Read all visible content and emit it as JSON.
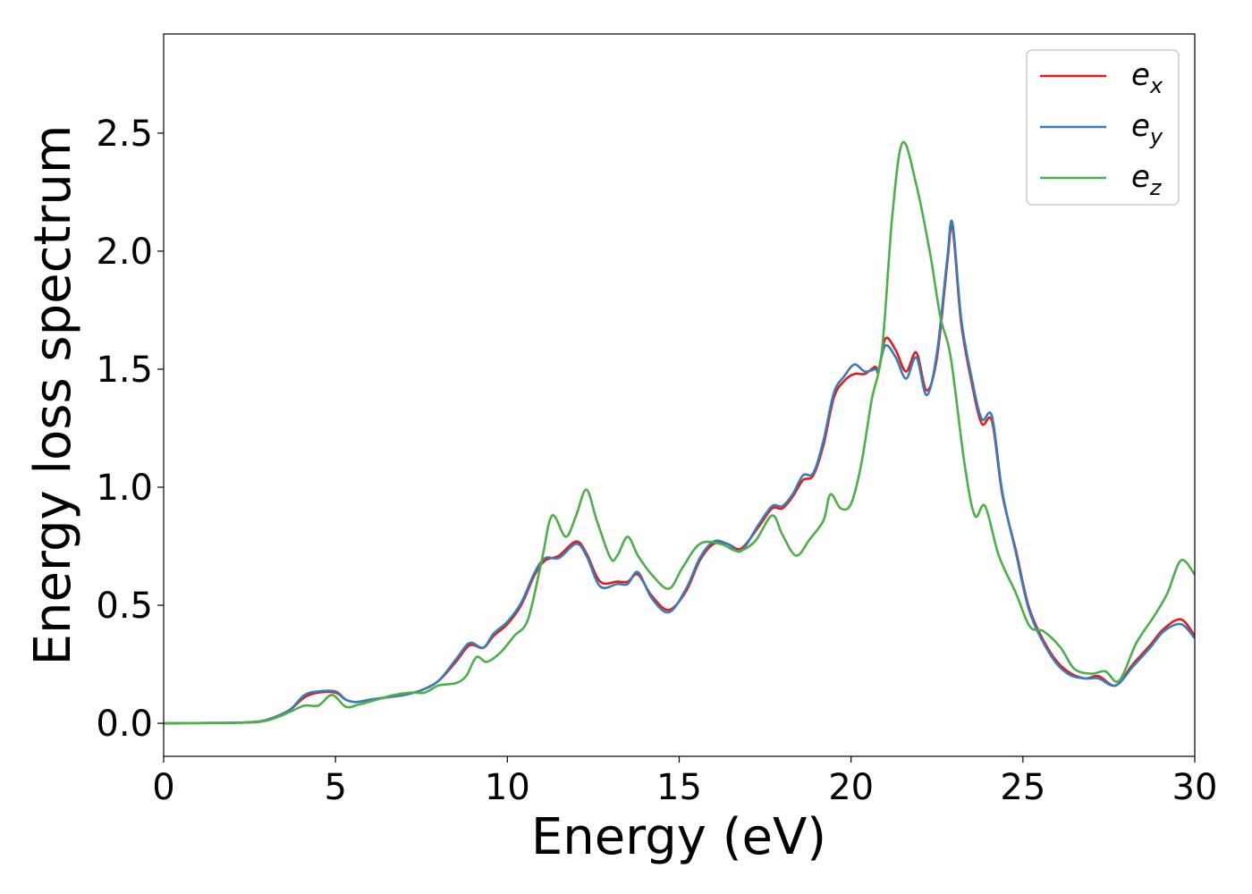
{
  "chart_data": {
    "type": "line",
    "title": "",
    "xlabel": "Energy (eV)",
    "ylabel": "Energy loss spectrum",
    "xlim": [
      0,
      30
    ],
    "ylim": [
      -0.14,
      2.92
    ],
    "xticks": [
      "0",
      "5",
      "10",
      "15",
      "20",
      "25",
      "30"
    ],
    "yticks": [
      "0.0",
      "0.5",
      "1.0",
      "1.5",
      "2.0",
      "2.5"
    ],
    "grid": false,
    "legend_position": "top-right",
    "series": [
      {
        "name": "e_x",
        "legend_main": "e",
        "legend_sub": "x",
        "color": "#e41a1c",
        "points": [
          [
            0,
            0
          ],
          [
            1,
            0.001
          ],
          [
            2,
            0.002
          ],
          [
            2.8,
            0.008
          ],
          [
            3.3,
            0.03
          ],
          [
            3.7,
            0.06
          ],
          [
            4.1,
            0.11
          ],
          [
            4.5,
            0.13
          ],
          [
            5,
            0.13
          ],
          [
            5.3,
            0.1
          ],
          [
            5.6,
            0.09
          ],
          [
            6,
            0.1
          ],
          [
            6.5,
            0.11
          ],
          [
            7,
            0.12
          ],
          [
            7.5,
            0.14
          ],
          [
            8,
            0.18
          ],
          [
            8.5,
            0.26
          ],
          [
            8.9,
            0.33
          ],
          [
            9.3,
            0.32
          ],
          [
            9.6,
            0.37
          ],
          [
            10,
            0.42
          ],
          [
            10.4,
            0.5
          ],
          [
            10.8,
            0.63
          ],
          [
            11.1,
            0.69
          ],
          [
            11.5,
            0.71
          ],
          [
            12,
            0.77
          ],
          [
            12.3,
            0.72
          ],
          [
            12.7,
            0.6
          ],
          [
            13.2,
            0.6
          ],
          [
            13.5,
            0.6
          ],
          [
            13.8,
            0.63
          ],
          [
            14.2,
            0.54
          ],
          [
            14.7,
            0.48
          ],
          [
            15.2,
            0.56
          ],
          [
            15.6,
            0.69
          ],
          [
            16,
            0.76
          ],
          [
            16.4,
            0.76
          ],
          [
            16.8,
            0.74
          ],
          [
            17.3,
            0.83
          ],
          [
            17.7,
            0.91
          ],
          [
            18,
            0.91
          ],
          [
            18.3,
            0.96
          ],
          [
            18.6,
            1.03
          ],
          [
            18.9,
            1.05
          ],
          [
            19.2,
            1.18
          ],
          [
            19.5,
            1.38
          ],
          [
            19.8,
            1.45
          ],
          [
            20.1,
            1.48
          ],
          [
            20.4,
            1.48
          ],
          [
            20.7,
            1.51
          ],
          [
            20.8,
            1.49
          ],
          [
            21,
            1.63
          ],
          [
            21.3,
            1.58
          ],
          [
            21.6,
            1.49
          ],
          [
            21.9,
            1.57
          ],
          [
            22.2,
            1.41
          ],
          [
            22.5,
            1.55
          ],
          [
            22.8,
            1.95
          ],
          [
            22.95,
            2.1
          ],
          [
            23.2,
            1.7
          ],
          [
            23.5,
            1.45
          ],
          [
            23.8,
            1.27
          ],
          [
            24.1,
            1.28
          ],
          [
            24.4,
            0.97
          ],
          [
            24.8,
            0.73
          ],
          [
            25.2,
            0.48
          ],
          [
            25.8,
            0.3
          ],
          [
            26.3,
            0.22
          ],
          [
            26.8,
            0.19
          ],
          [
            27.2,
            0.2
          ],
          [
            27.7,
            0.16
          ],
          [
            28.2,
            0.25
          ],
          [
            28.7,
            0.33
          ],
          [
            29.1,
            0.4
          ],
          [
            29.6,
            0.44
          ],
          [
            30,
            0.37
          ]
        ]
      },
      {
        "name": "e_y",
        "legend_main": "e",
        "legend_sub": "y",
        "color": "#377eb8",
        "points": [
          [
            0,
            0
          ],
          [
            1,
            0.001
          ],
          [
            2,
            0.002
          ],
          [
            2.8,
            0.008
          ],
          [
            3.3,
            0.03
          ],
          [
            3.7,
            0.06
          ],
          [
            4.1,
            0.12
          ],
          [
            4.5,
            0.135
          ],
          [
            5,
            0.135
          ],
          [
            5.3,
            0.1
          ],
          [
            5.6,
            0.09
          ],
          [
            6,
            0.1
          ],
          [
            6.5,
            0.11
          ],
          [
            7,
            0.12
          ],
          [
            7.5,
            0.14
          ],
          [
            8,
            0.18
          ],
          [
            8.5,
            0.27
          ],
          [
            8.9,
            0.34
          ],
          [
            9.3,
            0.32
          ],
          [
            9.6,
            0.38
          ],
          [
            10,
            0.43
          ],
          [
            10.4,
            0.51
          ],
          [
            10.8,
            0.64
          ],
          [
            11.1,
            0.7
          ],
          [
            11.5,
            0.7
          ],
          [
            12,
            0.76
          ],
          [
            12.3,
            0.71
          ],
          [
            12.7,
            0.58
          ],
          [
            13.2,
            0.59
          ],
          [
            13.5,
            0.59
          ],
          [
            13.8,
            0.64
          ],
          [
            14.2,
            0.53
          ],
          [
            14.7,
            0.47
          ],
          [
            15.2,
            0.57
          ],
          [
            15.6,
            0.7
          ],
          [
            16,
            0.77
          ],
          [
            16.4,
            0.76
          ],
          [
            16.8,
            0.73
          ],
          [
            17.3,
            0.84
          ],
          [
            17.7,
            0.92
          ],
          [
            18,
            0.92
          ],
          [
            18.3,
            0.97
          ],
          [
            18.6,
            1.05
          ],
          [
            18.9,
            1.06
          ],
          [
            19.2,
            1.2
          ],
          [
            19.5,
            1.4
          ],
          [
            19.8,
            1.47
          ],
          [
            20.1,
            1.52
          ],
          [
            20.4,
            1.49
          ],
          [
            20.7,
            1.5
          ],
          [
            20.8,
            1.5
          ],
          [
            21,
            1.6
          ],
          [
            21.3,
            1.55
          ],
          [
            21.6,
            1.46
          ],
          [
            21.9,
            1.55
          ],
          [
            22.2,
            1.39
          ],
          [
            22.5,
            1.57
          ],
          [
            22.8,
            1.97
          ],
          [
            22.95,
            2.12
          ],
          [
            23.2,
            1.72
          ],
          [
            23.5,
            1.47
          ],
          [
            23.8,
            1.29
          ],
          [
            24.1,
            1.3
          ],
          [
            24.4,
            0.98
          ],
          [
            24.8,
            0.72
          ],
          [
            25.2,
            0.47
          ],
          [
            25.8,
            0.29
          ],
          [
            26.3,
            0.21
          ],
          [
            26.8,
            0.19
          ],
          [
            27.2,
            0.19
          ],
          [
            27.7,
            0.16
          ],
          [
            28.2,
            0.24
          ],
          [
            28.7,
            0.32
          ],
          [
            29.1,
            0.39
          ],
          [
            29.6,
            0.42
          ],
          [
            30,
            0.36
          ]
        ]
      },
      {
        "name": "e_z",
        "legend_main": "e",
        "legend_sub": "z",
        "color": "#4daf4a",
        "points": [
          [
            0,
            0
          ],
          [
            1,
            0.001
          ],
          [
            2,
            0.002
          ],
          [
            2.8,
            0.006
          ],
          [
            3.3,
            0.025
          ],
          [
            3.7,
            0.05
          ],
          [
            4.1,
            0.075
          ],
          [
            4.5,
            0.075
          ],
          [
            4.9,
            0.12
          ],
          [
            5.3,
            0.07
          ],
          [
            5.7,
            0.08
          ],
          [
            6.2,
            0.1
          ],
          [
            6.7,
            0.12
          ],
          [
            7.2,
            0.13
          ],
          [
            7.6,
            0.13
          ],
          [
            8,
            0.16
          ],
          [
            8.5,
            0.17
          ],
          [
            8.8,
            0.2
          ],
          [
            9.1,
            0.28
          ],
          [
            9.4,
            0.26
          ],
          [
            9.8,
            0.3
          ],
          [
            10.2,
            0.37
          ],
          [
            10.6,
            0.44
          ],
          [
            11,
            0.69
          ],
          [
            11.3,
            0.88
          ],
          [
            11.7,
            0.79
          ],
          [
            12,
            0.88
          ],
          [
            12.3,
            0.99
          ],
          [
            12.6,
            0.86
          ],
          [
            13,
            0.7
          ],
          [
            13.2,
            0.71
          ],
          [
            13.5,
            0.79
          ],
          [
            13.8,
            0.71
          ],
          [
            14.2,
            0.63
          ],
          [
            14.7,
            0.57
          ],
          [
            15.1,
            0.66
          ],
          [
            15.6,
            0.76
          ],
          [
            16.2,
            0.76
          ],
          [
            16.7,
            0.73
          ],
          [
            17.2,
            0.77
          ],
          [
            17.7,
            0.88
          ],
          [
            18,
            0.8
          ],
          [
            18.4,
            0.71
          ],
          [
            18.8,
            0.78
          ],
          [
            19.2,
            0.86
          ],
          [
            19.4,
            0.97
          ],
          [
            19.7,
            0.91
          ],
          [
            20,
            0.93
          ],
          [
            20.3,
            1.1
          ],
          [
            20.6,
            1.37
          ],
          [
            20.9,
            1.58
          ],
          [
            21.2,
            2.15
          ],
          [
            21.5,
            2.46
          ],
          [
            21.9,
            2.28
          ],
          [
            22.3,
            1.99
          ],
          [
            22.6,
            1.72
          ],
          [
            22.9,
            1.55
          ],
          [
            23.3,
            1.1
          ],
          [
            23.6,
            0.88
          ],
          [
            23.9,
            0.92
          ],
          [
            24.3,
            0.71
          ],
          [
            24.8,
            0.55
          ],
          [
            25.2,
            0.41
          ],
          [
            25.6,
            0.39
          ],
          [
            26.1,
            0.32
          ],
          [
            26.5,
            0.23
          ],
          [
            27,
            0.21
          ],
          [
            27.4,
            0.22
          ],
          [
            27.8,
            0.18
          ],
          [
            28.3,
            0.34
          ],
          [
            28.8,
            0.45
          ],
          [
            29.2,
            0.55
          ],
          [
            29.6,
            0.69
          ],
          [
            30,
            0.63
          ]
        ]
      }
    ]
  }
}
